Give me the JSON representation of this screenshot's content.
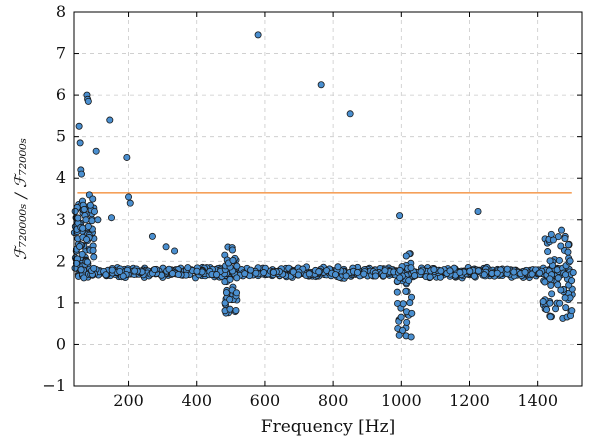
{
  "chart_data": {
    "type": "scatter",
    "xlabel": "Frequency [Hz]",
    "ylabel": "ℱ₇₂₀₀₀₀ₛ / ℱ₇₂₀₀₀ₛ",
    "xlim": [
      40,
      1530
    ],
    "ylim": [
      -1,
      8
    ],
    "xticks": [
      200,
      400,
      600,
      800,
      1000,
      1200,
      1400
    ],
    "yticks": [
      -1,
      0,
      1,
      2,
      3,
      4,
      5,
      6,
      7,
      8
    ],
    "grid": true,
    "reference_line": {
      "y": 3.65,
      "x_start": 50,
      "x_end": 1500,
      "color": "#f5a05a"
    },
    "marker_color": "#4a8fd0",
    "outliers": [
      [
        55,
        5.25
      ],
      [
        58,
        4.85
      ],
      [
        60,
        4.2
      ],
      [
        62,
        4.1
      ],
      [
        65,
        3.45
      ],
      [
        67,
        3.35
      ],
      [
        70,
        3.25
      ],
      [
        72,
        3.1
      ],
      [
        75,
        3.0
      ],
      [
        78,
        6.0
      ],
      [
        80,
        5.9
      ],
      [
        82,
        5.85
      ],
      [
        85,
        3.6
      ],
      [
        88,
        3.35
      ],
      [
        95,
        3.5
      ],
      [
        100,
        3.2
      ],
      [
        105,
        4.65
      ],
      [
        110,
        3.0
      ],
      [
        145,
        5.4
      ],
      [
        150,
        3.05
      ],
      [
        195,
        4.5
      ],
      [
        200,
        3.55
      ],
      [
        205,
        3.4
      ],
      [
        270,
        2.6
      ],
      [
        310,
        2.35
      ],
      [
        335,
        2.25
      ],
      [
        580,
        7.45
      ],
      [
        765,
        6.25
      ],
      [
        850,
        5.55
      ],
      [
        995,
        3.1
      ],
      [
        1225,
        3.2
      ],
      [
        1440,
        2.65
      ],
      [
        1470,
        2.75
      ],
      [
        1480,
        2.55
      ],
      [
        1490,
        2.4
      ]
    ],
    "clusters": [
      {
        "x_center": 60,
        "x_spread": 40,
        "y_min": 1.6,
        "y_max": 3.4,
        "count": 130
      },
      {
        "x_center": 500,
        "x_spread": 18,
        "y_min": 0.75,
        "y_max": 2.35,
        "count": 40
      },
      {
        "x_center": 1010,
        "x_spread": 22,
        "y_min": 0.05,
        "y_max": 2.3,
        "count": 45
      },
      {
        "x_center": 1460,
        "x_spread": 45,
        "y_min": 0.6,
        "y_max": 2.6,
        "count": 70
      }
    ],
    "baseline": {
      "x_start": 50,
      "x_end": 1500,
      "y_center": 1.73,
      "y_spread": 0.16,
      "count": 900
    }
  }
}
